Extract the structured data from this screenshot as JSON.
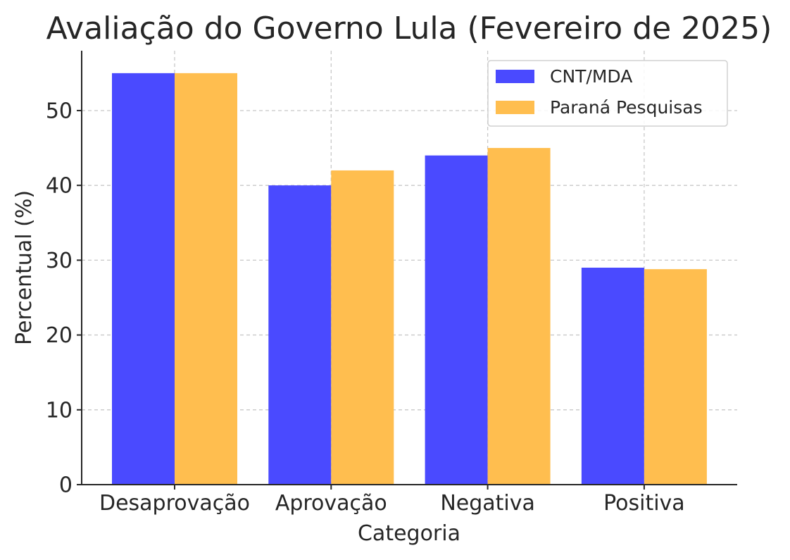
{
  "chart_data": {
    "type": "bar",
    "title": "Avaliação do Governo Lula (Fevereiro de 2025)",
    "xlabel": "Categoria",
    "ylabel": "Percentual (%)",
    "categories": [
      "Desaprovação",
      "Aprovação",
      "Negativa",
      "Positiva"
    ],
    "series": [
      {
        "name": "CNT/MDA",
        "color": "#4a4aff",
        "values": [
          55,
          40,
          44,
          29
        ]
      },
      {
        "name": "Paraná Pesquisas",
        "color": "#ffbe4f",
        "values": [
          55,
          42,
          45,
          28.8
        ]
      }
    ],
    "ylim": [
      0,
      58
    ],
    "yticks": [
      0,
      10,
      20,
      30,
      40,
      50
    ],
    "grid": true,
    "legend_position": "top-right"
  }
}
